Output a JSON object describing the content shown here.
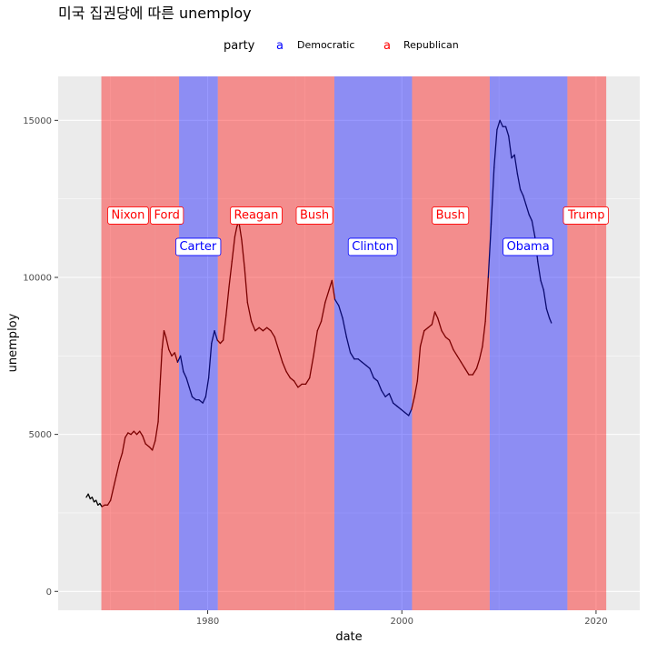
{
  "chart_data": {
    "type": "line",
    "title": "미국 집권당에 따른 unemploy",
    "xlabel": "date",
    "ylabel": "unemploy",
    "xlim": [
      1964.6,
      2024.5
    ],
    "ylim": [
      -600,
      16400
    ],
    "x_ticks": [
      1980,
      2000,
      2020
    ],
    "x_tick_labels": [
      "1980",
      "2000",
      "2020"
    ],
    "y_ticks": [
      0,
      5000,
      10000,
      15000
    ],
    "y_tick_labels": [
      "0",
      "5000",
      "10000",
      "15000"
    ],
    "grid": true,
    "legend": {
      "position": "top",
      "title": "party",
      "key_glyph": "a",
      "entries": [
        {
          "label": "Democratic",
          "color": "#0000ff"
        },
        {
          "label": "Republican",
          "color": "#ff0000"
        }
      ]
    },
    "colors": {
      "Democratic_fill": "#0000ff",
      "Republican_fill": "#ff0000",
      "Democratic_line": "#0a0a6e",
      "Republican_line": "#7a0000",
      "panel": "#ebebeb",
      "grid": "#ffffff"
    },
    "terms": [
      {
        "name": "Nixon",
        "party": "Republican",
        "start": 1969.05,
        "end": 1974.6
      },
      {
        "name": "Ford",
        "party": "Republican",
        "start": 1974.6,
        "end": 1977.05
      },
      {
        "name": "Carter",
        "party": "Democratic",
        "start": 1977.05,
        "end": 1981.05
      },
      {
        "name": "Reagan",
        "party": "Republican",
        "start": 1981.05,
        "end": 1989.05
      },
      {
        "name": "Bush",
        "party": "Republican",
        "start": 1989.05,
        "end": 1993.05
      },
      {
        "name": "Clinton",
        "party": "Democratic",
        "start": 1993.05,
        "end": 2001.05
      },
      {
        "name": "Bush",
        "party": "Republican",
        "start": 2001.05,
        "end": 2009.05
      },
      {
        "name": "Obama",
        "party": "Democratic",
        "start": 2009.05,
        "end": 2017.05
      },
      {
        "name": "Trump",
        "party": "Republican",
        "start": 2017.05,
        "end": 2021.05
      }
    ],
    "president_labels": [
      {
        "name": "Nixon",
        "party": "Republican",
        "x": 1971.8,
        "y": 12000
      },
      {
        "name": "Ford",
        "party": "Republican",
        "x": 1975.8,
        "y": 12000
      },
      {
        "name": "Carter",
        "party": "Democratic",
        "x": 1979.0,
        "y": 11000
      },
      {
        "name": "Reagan",
        "party": "Republican",
        "x": 1985.0,
        "y": 12000
      },
      {
        "name": "Bush",
        "party": "Republican",
        "x": 1991.0,
        "y": 12000
      },
      {
        "name": "Clinton",
        "party": "Democratic",
        "x": 1997.0,
        "y": 11000
      },
      {
        "name": "Bush",
        "party": "Republican",
        "x": 2005.0,
        "y": 12000
      },
      {
        "name": "Obama",
        "party": "Democratic",
        "x": 2013.0,
        "y": 11000
      },
      {
        "name": "Trump",
        "party": "Republican",
        "x": 2019.0,
        "y": 12000
      }
    ],
    "series": [
      {
        "points": [
          [
            1967.5,
            3000
          ],
          [
            1967.7,
            3100
          ],
          [
            1967.9,
            2950
          ],
          [
            1968.1,
            3000
          ],
          [
            1968.3,
            2850
          ],
          [
            1968.5,
            2900
          ],
          [
            1968.7,
            2750
          ],
          [
            1968.9,
            2800
          ],
          [
            1969.1,
            2700
          ],
          [
            1969.4,
            2750
          ],
          [
            1969.7,
            2750
          ],
          [
            1970.0,
            2900
          ],
          [
            1970.3,
            3300
          ],
          [
            1970.6,
            3700
          ],
          [
            1970.9,
            4100
          ],
          [
            1971.2,
            4400
          ],
          [
            1971.5,
            4900
          ],
          [
            1971.8,
            5050
          ],
          [
            1972.1,
            5000
          ],
          [
            1972.4,
            5100
          ],
          [
            1972.7,
            5000
          ],
          [
            1973.0,
            5100
          ],
          [
            1973.3,
            4950
          ],
          [
            1973.6,
            4700
          ],
          [
            1974.0,
            4600
          ],
          [
            1974.3,
            4500
          ],
          [
            1974.6,
            4800
          ],
          [
            1974.9,
            5400
          ],
          [
            1975.1,
            6600
          ],
          [
            1975.3,
            7700
          ],
          [
            1975.5,
            8300
          ],
          [
            1975.7,
            8100
          ],
          [
            1976.0,
            7700
          ],
          [
            1976.3,
            7500
          ],
          [
            1976.6,
            7600
          ],
          [
            1976.9,
            7300
          ],
          [
            1977.2,
            7500
          ],
          [
            1977.5,
            7000
          ],
          [
            1977.8,
            6800
          ],
          [
            1978.1,
            6500
          ],
          [
            1978.4,
            6200
          ],
          [
            1978.8,
            6100
          ],
          [
            1979.1,
            6100
          ],
          [
            1979.5,
            6000
          ],
          [
            1979.8,
            6200
          ],
          [
            1980.1,
            6800
          ],
          [
            1980.4,
            7900
          ],
          [
            1980.7,
            8300
          ],
          [
            1981.0,
            8000
          ],
          [
            1981.3,
            7900
          ],
          [
            1981.6,
            8000
          ],
          [
            1981.9,
            8800
          ],
          [
            1982.2,
            9700
          ],
          [
            1982.5,
            10500
          ],
          [
            1982.8,
            11300
          ],
          [
            1983.0,
            11600
          ],
          [
            1983.2,
            11800
          ],
          [
            1983.5,
            11200
          ],
          [
            1983.8,
            10300
          ],
          [
            1984.1,
            9200
          ],
          [
            1984.5,
            8600
          ],
          [
            1984.9,
            8300
          ],
          [
            1985.3,
            8400
          ],
          [
            1985.7,
            8300
          ],
          [
            1986.1,
            8400
          ],
          [
            1986.5,
            8300
          ],
          [
            1986.9,
            8100
          ],
          [
            1987.3,
            7700
          ],
          [
            1987.7,
            7300
          ],
          [
            1988.1,
            7000
          ],
          [
            1988.5,
            6800
          ],
          [
            1988.9,
            6700
          ],
          [
            1989.3,
            6500
          ],
          [
            1989.7,
            6600
          ],
          [
            1990.1,
            6600
          ],
          [
            1990.5,
            6800
          ],
          [
            1990.9,
            7500
          ],
          [
            1991.3,
            8300
          ],
          [
            1991.7,
            8600
          ],
          [
            1992.1,
            9200
          ],
          [
            1992.5,
            9600
          ],
          [
            1992.8,
            9900
          ],
          [
            1993.1,
            9300
          ],
          [
            1993.5,
            9100
          ],
          [
            1993.9,
            8700
          ],
          [
            1994.3,
            8100
          ],
          [
            1994.7,
            7600
          ],
          [
            1995.1,
            7400
          ],
          [
            1995.5,
            7400
          ],
          [
            1995.9,
            7300
          ],
          [
            1996.3,
            7200
          ],
          [
            1996.7,
            7100
          ],
          [
            1997.1,
            6800
          ],
          [
            1997.5,
            6700
          ],
          [
            1997.9,
            6400
          ],
          [
            1998.3,
            6200
          ],
          [
            1998.7,
            6300
          ],
          [
            1999.1,
            6000
          ],
          [
            1999.5,
            5900
          ],
          [
            1999.9,
            5800
          ],
          [
            2000.3,
            5700
          ],
          [
            2000.7,
            5600
          ],
          [
            2001.0,
            5800
          ],
          [
            2001.3,
            6200
          ],
          [
            2001.6,
            6700
          ],
          [
            2001.9,
            7800
          ],
          [
            2002.3,
            8300
          ],
          [
            2002.7,
            8400
          ],
          [
            2003.1,
            8500
          ],
          [
            2003.4,
            8900
          ],
          [
            2003.7,
            8700
          ],
          [
            2004.1,
            8300
          ],
          [
            2004.5,
            8100
          ],
          [
            2004.9,
            8000
          ],
          [
            2005.3,
            7700
          ],
          [
            2005.7,
            7500
          ],
          [
            2006.1,
            7300
          ],
          [
            2006.5,
            7100
          ],
          [
            2006.9,
            6900
          ],
          [
            2007.3,
            6900
          ],
          [
            2007.7,
            7100
          ],
          [
            2008.0,
            7400
          ],
          [
            2008.3,
            7800
          ],
          [
            2008.6,
            8600
          ],
          [
            2008.9,
            10000
          ],
          [
            2009.2,
            11700
          ],
          [
            2009.5,
            13500
          ],
          [
            2009.8,
            14700
          ],
          [
            2010.1,
            15000
          ],
          [
            2010.4,
            14800
          ],
          [
            2010.7,
            14800
          ],
          [
            2011.0,
            14500
          ],
          [
            2011.3,
            13800
          ],
          [
            2011.6,
            13900
          ],
          [
            2011.9,
            13300
          ],
          [
            2012.2,
            12800
          ],
          [
            2012.5,
            12600
          ],
          [
            2012.8,
            12300
          ],
          [
            2013.1,
            12000
          ],
          [
            2013.4,
            11800
          ],
          [
            2013.7,
            11300
          ],
          [
            2014.0,
            10500
          ],
          [
            2014.3,
            9900
          ],
          [
            2014.6,
            9600
          ],
          [
            2014.9,
            9000
          ],
          [
            2015.2,
            8700
          ],
          [
            2015.4,
            8550
          ]
        ]
      }
    ]
  }
}
